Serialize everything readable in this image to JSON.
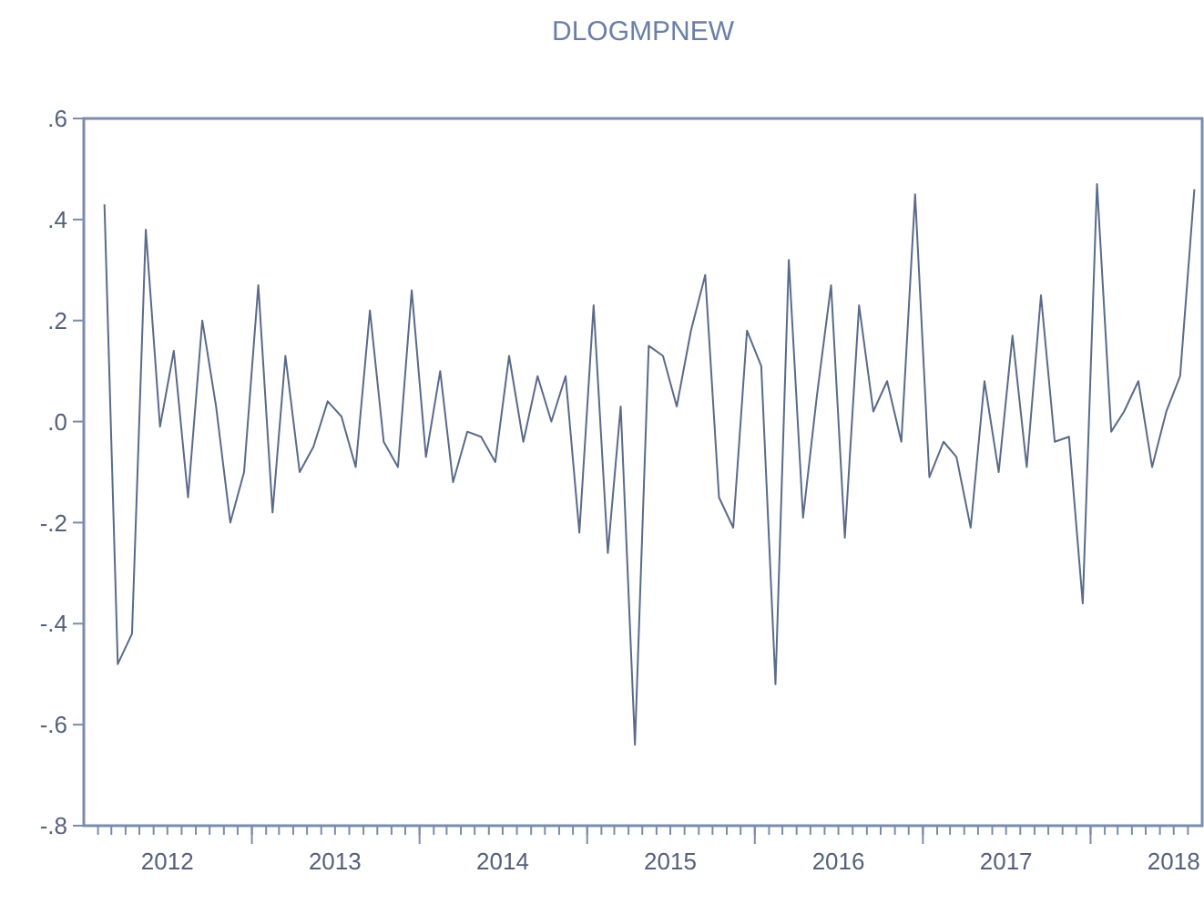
{
  "chart_data": {
    "type": "line",
    "title": "DLOGMPNEW",
    "x": [
      "2012-02-15",
      "2012-03-15",
      "2012-04-15",
      "2012-05-15",
      "2012-06-15",
      "2012-07-15",
      "2012-08-15",
      "2012-09-15",
      "2012-10-15",
      "2012-11-15",
      "2012-12-15",
      "2013-01-15",
      "2013-02-15",
      "2013-03-15",
      "2013-04-15",
      "2013-05-15",
      "2013-06-15",
      "2013-07-15",
      "2013-08-15",
      "2013-09-15",
      "2013-10-15",
      "2013-11-15",
      "2013-12-15",
      "2014-01-15",
      "2014-02-15",
      "2014-03-15",
      "2014-04-15",
      "2014-05-15",
      "2014-06-15",
      "2014-07-15",
      "2014-08-15",
      "2014-09-15",
      "2014-10-15",
      "2014-11-15",
      "2014-12-15",
      "2015-01-15",
      "2015-02-15",
      "2015-03-15",
      "2015-04-15",
      "2015-05-15",
      "2015-06-15",
      "2015-07-15",
      "2015-08-15",
      "2015-09-15",
      "2015-10-15",
      "2015-11-15",
      "2015-12-15",
      "2016-01-15",
      "2016-02-15",
      "2016-03-15",
      "2016-04-15",
      "2016-05-15",
      "2016-06-15",
      "2016-07-15",
      "2016-08-15",
      "2016-09-15",
      "2016-10-15",
      "2016-11-15",
      "2016-12-15",
      "2017-01-15",
      "2017-02-15",
      "2017-03-15",
      "2017-04-15",
      "2017-05-15",
      "2017-06-15",
      "2017-07-15",
      "2017-08-15",
      "2017-09-15",
      "2017-10-15",
      "2017-11-15",
      "2017-12-15",
      "2018-01-15",
      "2018-02-15",
      "2018-03-15",
      "2018-04-15",
      "2018-05-15",
      "2018-06-15",
      "2018-07-15",
      "2018-08-15"
    ],
    "series": [
      {
        "color": "#5a6a8a",
        "values": [
          0.43,
          -0.48,
          -0.42,
          0.38,
          -0.01,
          0.14,
          -0.15,
          0.2,
          0.03,
          -0.2,
          -0.1,
          0.27,
          -0.18,
          0.13,
          -0.1,
          -0.05,
          0.04,
          0.01,
          -0.09,
          0.22,
          -0.04,
          -0.09,
          0.26,
          -0.07,
          0.1,
          -0.12,
          -0.02,
          -0.03,
          -0.08,
          0.13,
          -0.04,
          0.09,
          0.0,
          0.09,
          -0.22,
          0.23,
          -0.26,
          0.03,
          -0.64,
          0.15,
          0.13,
          0.03,
          0.18,
          0.29,
          -0.15,
          -0.21,
          0.18,
          0.11,
          -0.52,
          0.32,
          -0.19,
          0.05,
          0.27,
          -0.23,
          0.23,
          0.02,
          0.08,
          -0.04,
          0.45,
          -0.11,
          -0.04,
          -0.07,
          -0.21,
          0.08,
          -0.1,
          0.17,
          -0.09,
          0.25,
          -0.04,
          -0.03,
          -0.36,
          0.47,
          -0.02,
          0.02,
          0.08,
          -0.09,
          0.02,
          0.09,
          0.46
        ]
      }
    ],
    "xlim": [
      "2012-01-01",
      "2018-09-01"
    ],
    "xticks": [
      {
        "value": "2012-07-01",
        "label": "2012"
      },
      {
        "value": "2013-01-01",
        "label": null
      },
      {
        "value": "2013-07-01",
        "label": "2013"
      },
      {
        "value": "2014-01-01",
        "label": null
      },
      {
        "value": "2014-07-01",
        "label": "2014"
      },
      {
        "value": "2015-01-01",
        "label": null
      },
      {
        "value": "2015-07-01",
        "label": "2015"
      },
      {
        "value": "2016-01-01",
        "label": null
      },
      {
        "value": "2016-07-01",
        "label": "2016"
      },
      {
        "value": "2017-01-01",
        "label": null
      },
      {
        "value": "2017-07-01",
        "label": "2017"
      },
      {
        "value": "2018-01-01",
        "label": null
      },
      {
        "value": "2018-07-01",
        "label": "2018"
      }
    ],
    "ylim": [
      -0.8,
      0.6
    ],
    "yticks": [
      {
        "value": -0.8,
        "label": "-.8"
      },
      {
        "value": -0.6,
        "label": "-.6"
      },
      {
        "value": -0.4,
        "label": "-.4"
      },
      {
        "value": -0.2,
        "label": "-.2"
      },
      {
        "value": 0,
        "label": ".0"
      },
      {
        "value": 0.2,
        "label": ".2"
      },
      {
        "value": 0.4,
        "label": ".4"
      },
      {
        "value": 0.6,
        "label": ".6"
      }
    ],
    "grid": false,
    "line_style": "solid",
    "marker": "none"
  }
}
